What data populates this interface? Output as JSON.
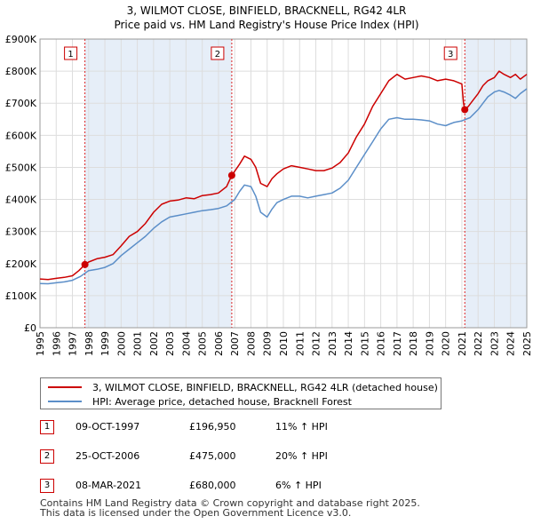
{
  "title_line1": "3, WILMOT CLOSE, BINFIELD, BRACKNELL, RG42 4LR",
  "title_line2": "Price paid vs. HM Land Registry's House Price Index (HPI)",
  "colors": {
    "property": "#cc0000",
    "hpi": "#5b8ec8",
    "shade": "#e6eef8",
    "marker_line": "#dd2222",
    "grid": "#dddddd"
  },
  "chart_data": {
    "type": "line",
    "title": "3, WILMOT CLOSE, BINFIELD, BRACKNELL, RG42 4LR — Price paid vs. HM Land Registry's House Price Index (HPI)",
    "xlabel": "",
    "ylabel": "",
    "xlim": [
      1995,
      2025
    ],
    "ylim": [
      0,
      900000
    ],
    "x_ticks": [
      1995,
      1996,
      1997,
      1998,
      1999,
      2000,
      2001,
      2002,
      2003,
      2004,
      2005,
      2006,
      2007,
      2008,
      2009,
      2010,
      2011,
      2012,
      2013,
      2014,
      2015,
      2016,
      2017,
      2018,
      2019,
      2020,
      2021,
      2022,
      2023,
      2024,
      2025
    ],
    "y_ticks": [
      {
        "value": 0,
        "label": "£0"
      },
      {
        "value": 100000,
        "label": "£100K"
      },
      {
        "value": 200000,
        "label": "£200K"
      },
      {
        "value": 300000,
        "label": "£300K"
      },
      {
        "value": 400000,
        "label": "£400K"
      },
      {
        "value": 500000,
        "label": "£500K"
      },
      {
        "value": 600000,
        "label": "£600K"
      },
      {
        "value": 700000,
        "label": "£700K"
      },
      {
        "value": 800000,
        "label": "£800K"
      },
      {
        "value": 900000,
        "label": "£900K"
      }
    ],
    "grid": true,
    "shaded_ranges": [
      [
        1997.77,
        2006.82
      ],
      [
        2021.18,
        2025
      ]
    ],
    "legend_position": "below",
    "series": [
      {
        "name": "3, WILMOT CLOSE, BINFIELD, BRACKNELL, RG42 4LR (detached house)",
        "x": [
          1995.0,
          1995.5,
          1996.0,
          1996.5,
          1997.0,
          1997.4,
          1997.77,
          1998.0,
          1998.5,
          1999.0,
          1999.5,
          2000.0,
          2000.5,
          2001.0,
          2001.5,
          2002.0,
          2002.5,
          2003.0,
          2003.5,
          2004.0,
          2004.5,
          2005.0,
          2005.5,
          2006.0,
          2006.5,
          2006.82,
          2007.0,
          2007.3,
          2007.6,
          2008.0,
          2008.3,
          2008.6,
          2009.0,
          2009.3,
          2009.6,
          2010.0,
          2010.5,
          2011.0,
          2011.5,
          2012.0,
          2012.5,
          2013.0,
          2013.5,
          2014.0,
          2014.5,
          2015.0,
          2015.5,
          2016.0,
          2016.5,
          2017.0,
          2017.5,
          2018.0,
          2018.5,
          2019.0,
          2019.5,
          2020.0,
          2020.5,
          2021.0,
          2021.1,
          2021.18,
          2021.4,
          2021.7,
          2022.0,
          2022.3,
          2022.6,
          2023.0,
          2023.3,
          2023.6,
          2024.0,
          2024.3,
          2024.6,
          2025.0
        ],
        "values": [
          152000,
          150000,
          154000,
          157000,
          162000,
          178000,
          196950,
          205000,
          215000,
          220000,
          228000,
          255000,
          285000,
          300000,
          325000,
          360000,
          385000,
          395000,
          398000,
          405000,
          402000,
          412000,
          415000,
          420000,
          440000,
          475000,
          488000,
          510000,
          535000,
          525000,
          500000,
          450000,
          440000,
          465000,
          480000,
          495000,
          505000,
          500000,
          495000,
          490000,
          490000,
          498000,
          515000,
          545000,
          595000,
          635000,
          690000,
          730000,
          770000,
          790000,
          775000,
          780000,
          785000,
          780000,
          770000,
          775000,
          770000,
          760000,
          700000,
          680000,
          690000,
          710000,
          730000,
          755000,
          770000,
          780000,
          800000,
          790000,
          780000,
          790000,
          775000,
          790000
        ]
      },
      {
        "name": "HPI: Average price, detached house, Bracknell Forest",
        "x": [
          1995.0,
          1995.5,
          1996.0,
          1996.5,
          1997.0,
          1997.5,
          1998.0,
          1998.5,
          1999.0,
          1999.5,
          2000.0,
          2000.5,
          2001.0,
          2001.5,
          2002.0,
          2002.5,
          2003.0,
          2003.5,
          2004.0,
          2004.5,
          2005.0,
          2005.5,
          2006.0,
          2006.5,
          2007.0,
          2007.3,
          2007.6,
          2008.0,
          2008.3,
          2008.6,
          2009.0,
          2009.3,
          2009.6,
          2010.0,
          2010.5,
          2011.0,
          2011.5,
          2012.0,
          2012.5,
          2013.0,
          2013.5,
          2014.0,
          2014.5,
          2015.0,
          2015.5,
          2016.0,
          2016.5,
          2017.0,
          2017.5,
          2018.0,
          2018.5,
          2019.0,
          2019.5,
          2020.0,
          2020.5,
          2021.0,
          2021.5,
          2022.0,
          2022.3,
          2022.6,
          2023.0,
          2023.3,
          2023.6,
          2024.0,
          2024.3,
          2024.6,
          2025.0
        ],
        "values": [
          138000,
          137000,
          140000,
          143000,
          148000,
          160000,
          178000,
          182000,
          188000,
          200000,
          225000,
          245000,
          265000,
          285000,
          310000,
          330000,
          345000,
          350000,
          355000,
          360000,
          365000,
          368000,
          372000,
          380000,
          400000,
          425000,
          445000,
          440000,
          410000,
          360000,
          345000,
          370000,
          390000,
          400000,
          410000,
          410000,
          405000,
          410000,
          415000,
          420000,
          435000,
          460000,
          500000,
          540000,
          580000,
          620000,
          650000,
          655000,
          650000,
          650000,
          648000,
          645000,
          635000,
          630000,
          640000,
          645000,
          655000,
          680000,
          700000,
          720000,
          735000,
          740000,
          735000,
          725000,
          715000,
          730000,
          745000
        ]
      }
    ],
    "annotations": [
      {
        "label": "1",
        "x": 1997.77,
        "value": 196950
      },
      {
        "label": "2",
        "x": 2006.82,
        "value": 475000
      },
      {
        "label": "3",
        "x": 2021.18,
        "value": 680000
      }
    ]
  },
  "legend": {
    "property_label": "3, WILMOT CLOSE, BINFIELD, BRACKNELL, RG42 4LR (detached house)",
    "hpi_label": "HPI: Average price, detached house, Bracknell Forest"
  },
  "sales": [
    {
      "num": "1",
      "date": "09-OCT-1997",
      "price": "£196,950",
      "hpi": "11% ↑ HPI"
    },
    {
      "num": "2",
      "date": "25-OCT-2006",
      "price": "£475,000",
      "hpi": "20% ↑ HPI"
    },
    {
      "num": "3",
      "date": "08-MAR-2021",
      "price": "£680,000",
      "hpi": "6% ↑ HPI"
    }
  ],
  "footer": {
    "line1": "Contains HM Land Registry data © Crown copyright and database right 2025.",
    "line2": "This data is licensed under the Open Government Licence v3.0."
  }
}
